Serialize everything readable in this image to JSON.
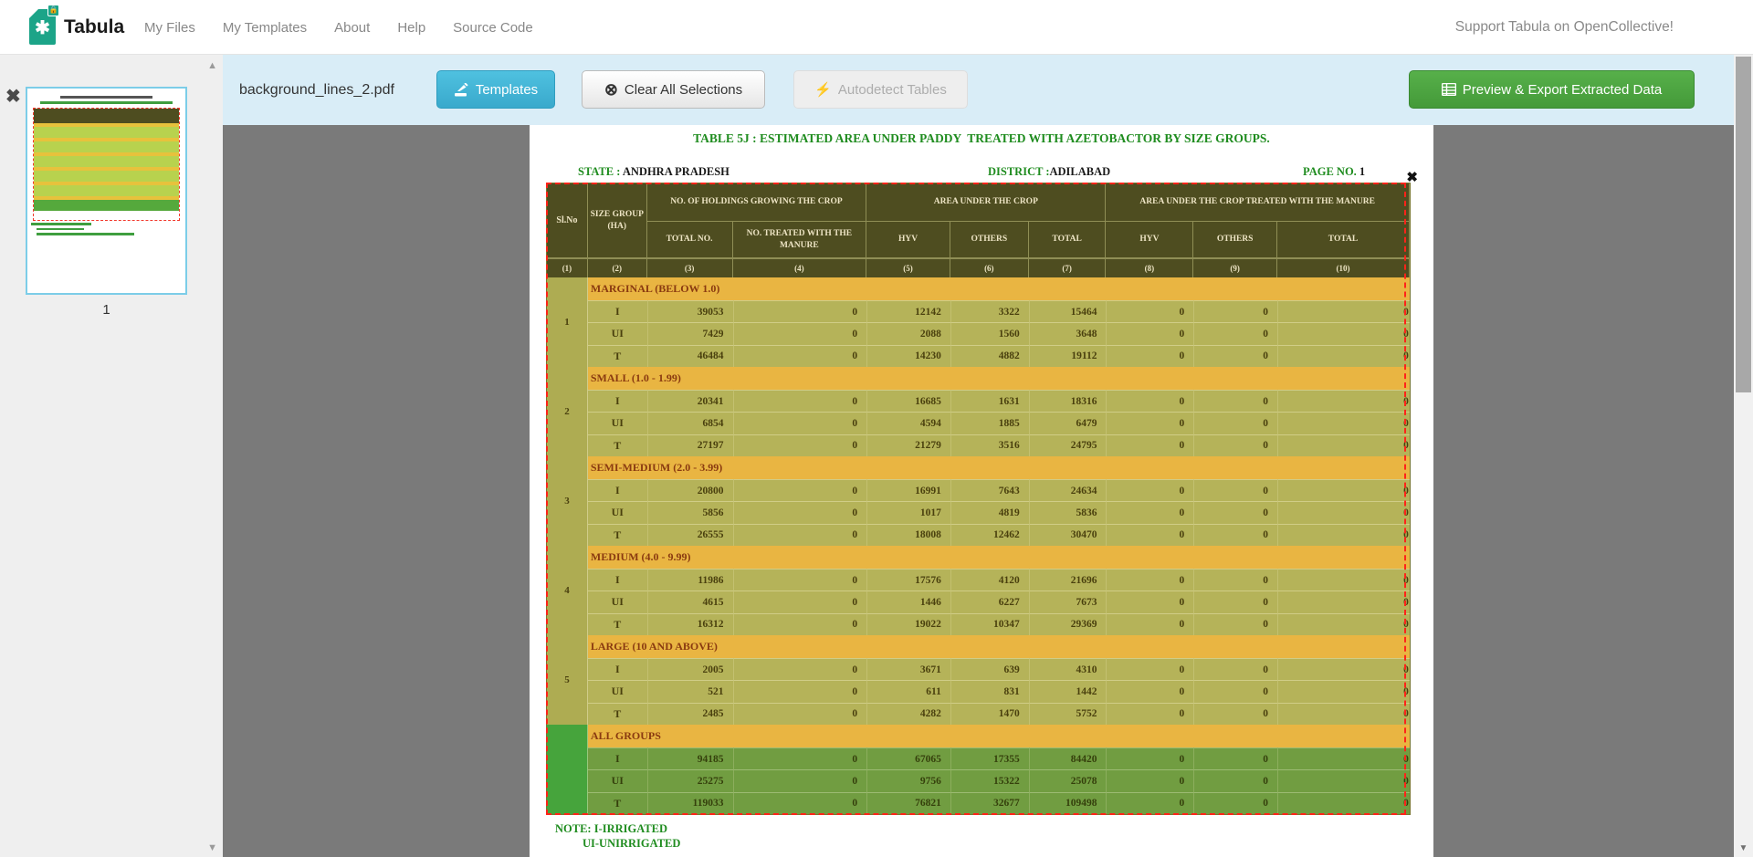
{
  "navbar": {
    "brand": "Tabula",
    "items": [
      "My Files",
      "My Templates",
      "About",
      "Help",
      "Source Code"
    ],
    "support": "Support Tabula on OpenCollective!"
  },
  "toolbar": {
    "filename": "background_lines_2.pdf",
    "templates_label": "Templates",
    "clear_label": "Clear All Selections",
    "autodetect_label": "Autodetect Tables",
    "export_label": "Preview & Export Extracted Data"
  },
  "sidebar": {
    "page_caption": "1"
  },
  "document": {
    "title": "TABLE 5J : ESTIMATED AREA UNDER PADDY  TREATED WITH AZETOBACTOR BY SIZE GROUPS.",
    "state_label": "STATE : ",
    "state_value": "ANDHRA PRADESH",
    "district_label": "DISTRICT :",
    "district_value": "ADILABAD",
    "page_no_label": "PAGE NO. ",
    "page_no_value": "1",
    "note_line1": "NOTE: I-IRRIGATED",
    "note_line2": "UI-UNIRRIGATED"
  },
  "table": {
    "headers": {
      "slno": "Sl.No",
      "size_group": "SIZE GROUP (HA)",
      "group1": "NO. OF HOLDINGS GROWING THE CROP",
      "total_no": "TOTAL NO.",
      "treated": "NO. TREATED WITH THE MANURE",
      "group2": "AREA UNDER THE CROP",
      "group3": "AREA UNDER THE CROP TREATED WITH THE MANURE",
      "hyv": "HYV",
      "others": "OTHERS",
      "total": "TOTAL"
    },
    "col_numbers": [
      "(1)",
      "(2)",
      "(3)",
      "(4)",
      "(5)",
      "(6)",
      "(7)",
      "(8)",
      "(9)",
      "(10)"
    ],
    "sections": [
      {
        "sl": "1",
        "name": "MARGINAL (BELOW 1.0)",
        "all_groups": false,
        "rows": [
          [
            "I",
            "39053",
            "0",
            "12142",
            "3322",
            "15464",
            "0",
            "0",
            "0"
          ],
          [
            "UI",
            "7429",
            "0",
            "2088",
            "1560",
            "3648",
            "0",
            "0",
            "0"
          ],
          [
            "T",
            "46484",
            "0",
            "14230",
            "4882",
            "19112",
            "0",
            "0",
            "0"
          ]
        ]
      },
      {
        "sl": "2",
        "name": "SMALL (1.0 - 1.99)",
        "all_groups": false,
        "rows": [
          [
            "I",
            "20341",
            "0",
            "16685",
            "1631",
            "18316",
            "0",
            "0",
            "0"
          ],
          [
            "UI",
            "6854",
            "0",
            "4594",
            "1885",
            "6479",
            "0",
            "0",
            "0"
          ],
          [
            "T",
            "27197",
            "0",
            "21279",
            "3516",
            "24795",
            "0",
            "0",
            "0"
          ]
        ]
      },
      {
        "sl": "3",
        "name": "SEMI-MEDIUM (2.0 - 3.99)",
        "all_groups": false,
        "rows": [
          [
            "I",
            "20800",
            "0",
            "16991",
            "7643",
            "24634",
            "0",
            "0",
            "0"
          ],
          [
            "UI",
            "5856",
            "0",
            "1017",
            "4819",
            "5836",
            "0",
            "0",
            "0"
          ],
          [
            "T",
            "26555",
            "0",
            "18008",
            "12462",
            "30470",
            "0",
            "0",
            "0"
          ]
        ]
      },
      {
        "sl": "4",
        "name": "MEDIUM (4.0 - 9.99)",
        "all_groups": false,
        "rows": [
          [
            "I",
            "11986",
            "0",
            "17576",
            "4120",
            "21696",
            "0",
            "0",
            "0"
          ],
          [
            "UI",
            "4615",
            "0",
            "1446",
            "6227",
            "7673",
            "0",
            "0",
            "0"
          ],
          [
            "T",
            "16312",
            "0",
            "19022",
            "10347",
            "29369",
            "0",
            "0",
            "0"
          ]
        ]
      },
      {
        "sl": "5",
        "name": "LARGE (10 AND ABOVE)",
        "all_groups": false,
        "rows": [
          [
            "I",
            "2005",
            "0",
            "3671",
            "639",
            "4310",
            "0",
            "0",
            "0"
          ],
          [
            "UI",
            "521",
            "0",
            "611",
            "831",
            "1442",
            "0",
            "0",
            "0"
          ],
          [
            "T",
            "2485",
            "0",
            "4282",
            "1470",
            "5752",
            "0",
            "0",
            "0"
          ]
        ]
      },
      {
        "sl": "",
        "name": "ALL GROUPS",
        "all_groups": true,
        "rows": [
          [
            "I",
            "94185",
            "0",
            "67065",
            "17355",
            "84420",
            "0",
            "0",
            "0"
          ],
          [
            "UI",
            "25275",
            "0",
            "9756",
            "15322",
            "25078",
            "0",
            "0",
            "0"
          ],
          [
            "T",
            "119033",
            "0",
            "76821",
            "32677",
            "109498",
            "0",
            "0",
            "0"
          ]
        ]
      }
    ]
  },
  "colors": {
    "accent_teal": "#1ca488",
    "toolbar_bg": "#d9edf7",
    "templates_blue": "#41b2d5",
    "export_green": "#4da53f",
    "selection_red": "#fe2419",
    "table_header_olive": "#4e4d20",
    "row_yellow": "#b5b359",
    "section_orange": "#e9b542",
    "all_groups_green": "#719d41",
    "doc_green": "#1f8c1f",
    "main_gray": "#7a7a7a"
  }
}
